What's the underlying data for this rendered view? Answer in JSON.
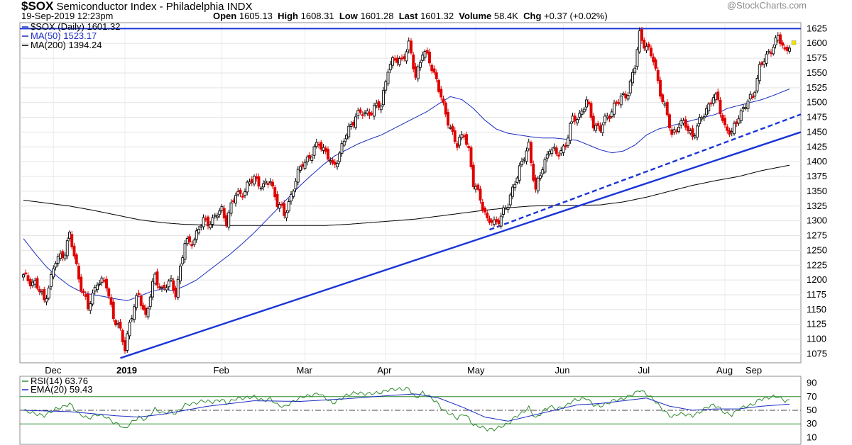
{
  "header": {
    "symbol": "$SOX",
    "name": "Semiconductor Index - Philadelphia INDX",
    "datetime": "19-Sep-2019 12:23pm",
    "open_label": "Open",
    "open": "1605.13",
    "high_label": "High",
    "high": "1608.31",
    "low_label": "Low",
    "low": "1601.28",
    "last_label": "Last",
    "last": "1601.32",
    "volume_label": "Volume",
    "volume": "58.4K",
    "chg_label": "Chg",
    "chg": "+0.37 (+0.02%)",
    "watermark": "@StockCharts.com"
  },
  "colors": {
    "up": "#000000",
    "down": "#e00000",
    "ma50": "#1a2bc0",
    "ma200": "#000000",
    "trend": "#1a35d8",
    "rsi": "#2f8a2f",
    "ema": "#1a2bc0",
    "rsi_band": "#2f8a2f"
  },
  "chart_data": [
    {
      "type": "candlestick",
      "legend": [
        "$SOX (Daily) 1601.32",
        "MA(50) 1523.17",
        "MA(200) 1394.24"
      ],
      "legend_placement": "top-left",
      "ylim": [
        1060,
        1635
      ],
      "yticks": [
        1075,
        1100,
        1125,
        1150,
        1175,
        1200,
        1225,
        1250,
        1275,
        1300,
        1325,
        1350,
        1375,
        1400,
        1425,
        1450,
        1475,
        1500,
        1525,
        1550,
        1575,
        1600,
        1625
      ],
      "xlabels": [
        "Dec",
        "2019",
        "Feb",
        "Mar",
        "Apr",
        "May",
        "Jun",
        "Jul",
        "Aug",
        "Sep"
      ],
      "close_anchors": [
        [
          0,
          1205
        ],
        [
          5,
          1195
        ],
        [
          9,
          1165
        ],
        [
          14,
          1230
        ],
        [
          18,
          1250
        ],
        [
          20,
          1275
        ],
        [
          24,
          1205
        ],
        [
          28,
          1150
        ],
        [
          32,
          1200
        ],
        [
          36,
          1190
        ],
        [
          39,
          1140
        ],
        [
          42,
          1110
        ],
        [
          44,
          1085
        ],
        [
          46,
          1130
        ],
        [
          50,
          1175
        ],
        [
          53,
          1140
        ],
        [
          57,
          1205
        ],
        [
          60,
          1185
        ],
        [
          64,
          1195
        ],
        [
          66,
          1180
        ],
        [
          70,
          1260
        ],
        [
          74,
          1270
        ],
        [
          78,
          1300
        ],
        [
          82,
          1300
        ],
        [
          86,
          1320
        ],
        [
          88,
          1300
        ],
        [
          92,
          1345
        ],
        [
          96,
          1350
        ],
        [
          100,
          1375
        ],
        [
          104,
          1355
        ],
        [
          107,
          1370
        ],
        [
          110,
          1330
        ],
        [
          113,
          1310
        ],
        [
          117,
          1355
        ],
        [
          121,
          1400
        ],
        [
          125,
          1410
        ],
        [
          128,
          1435
        ],
        [
          131,
          1415
        ],
        [
          134,
          1390
        ],
        [
          137,
          1415
        ],
        [
          140,
          1445
        ],
        [
          144,
          1480
        ],
        [
          148,
          1480
        ],
        [
          152,
          1490
        ],
        [
          155,
          1495
        ],
        [
          158,
          1560
        ],
        [
          161,
          1570
        ],
        [
          164,
          1575
        ],
        [
          167,
          1595
        ],
        [
          170,
          1545
        ],
        [
          173,
          1585
        ],
        [
          176,
          1570
        ],
        [
          179,
          1540
        ],
        [
          182,
          1490
        ],
        [
          185,
          1460
        ],
        [
          188,
          1425
        ],
        [
          191,
          1450
        ],
        [
          193,
          1420
        ],
        [
          195,
          1360
        ],
        [
          198,
          1340
        ],
        [
          201,
          1300
        ],
        [
          204,
          1295
        ],
        [
          207,
          1310
        ],
        [
          210,
          1325
        ],
        [
          213,
          1370
        ],
        [
          216,
          1395
        ],
        [
          219,
          1430
        ],
        [
          222,
          1350
        ],
        [
          225,
          1390
        ],
        [
          228,
          1425
        ],
        [
          231,
          1410
        ],
        [
          235,
          1430
        ],
        [
          238,
          1470
        ],
        [
          241,
          1480
        ],
        [
          244,
          1500
        ],
        [
          247,
          1465
        ],
        [
          250,
          1455
        ],
        [
          253,
          1475
        ],
        [
          256,
          1495
        ],
        [
          259,
          1505
        ],
        [
          262,
          1520
        ],
        [
          265,
          1560
        ],
        [
          267,
          1615
        ],
        [
          270,
          1595
        ],
        [
          273,
          1570
        ],
        [
          276,
          1520
        ],
        [
          278,
          1490
        ],
        [
          281,
          1445
        ],
        [
          284,
          1465
        ],
        [
          287,
          1460
        ],
        [
          290,
          1445
        ],
        [
          293,
          1465
        ],
        [
          296,
          1490
        ],
        [
          299,
          1510
        ],
        [
          301,
          1500
        ],
        [
          304,
          1460
        ],
        [
          307,
          1445
        ],
        [
          310,
          1480
        ],
        [
          313,
          1495
        ],
        [
          316,
          1510
        ],
        [
          319,
          1560
        ],
        [
          322,
          1575
        ],
        [
          325,
          1600
        ],
        [
          327,
          1610
        ],
        [
          330,
          1585
        ],
        [
          332,
          1601
        ]
      ],
      "ma50": [
        [
          0,
          1270
        ],
        [
          5,
          1245
        ],
        [
          10,
          1222
        ],
        [
          15,
          1205
        ],
        [
          20,
          1190
        ],
        [
          25,
          1180
        ],
        [
          30,
          1175
        ],
        [
          35,
          1172
        ],
        [
          40,
          1168
        ],
        [
          45,
          1165
        ],
        [
          50,
          1172
        ],
        [
          55,
          1180
        ],
        [
          60,
          1185
        ],
        [
          65,
          1182
        ],
        [
          70,
          1190
        ],
        [
          75,
          1200
        ],
        [
          80,
          1215
        ],
        [
          85,
          1230
        ],
        [
          90,
          1245
        ],
        [
          95,
          1262
        ],
        [
          100,
          1280
        ],
        [
          105,
          1300
        ],
        [
          110,
          1320
        ],
        [
          115,
          1340
        ],
        [
          120,
          1360
        ],
        [
          125,
          1378
        ],
        [
          130,
          1395
        ],
        [
          135,
          1410
        ],
        [
          140,
          1420
        ],
        [
          145,
          1430
        ],
        [
          150,
          1438
        ],
        [
          155,
          1445
        ],
        [
          160,
          1455
        ],
        [
          165,
          1465
        ],
        [
          170,
          1475
        ],
        [
          175,
          1485
        ],
        [
          180,
          1498
        ],
        [
          185,
          1510
        ],
        [
          190,
          1505
        ],
        [
          195,
          1490
        ],
        [
          200,
          1470
        ],
        [
          205,
          1455
        ],
        [
          210,
          1448
        ],
        [
          215,
          1445
        ],
        [
          220,
          1442
        ],
        [
          225,
          1440
        ],
        [
          230,
          1440
        ],
        [
          235,
          1438
        ],
        [
          240,
          1436
        ],
        [
          245,
          1428
        ],
        [
          250,
          1420
        ],
        [
          255,
          1415
        ],
        [
          260,
          1418
        ],
        [
          265,
          1428
        ],
        [
          270,
          1445
        ],
        [
          275,
          1455
        ],
        [
          280,
          1460
        ],
        [
          285,
          1465
        ],
        [
          290,
          1470
        ],
        [
          295,
          1475
        ],
        [
          300,
          1480
        ],
        [
          305,
          1490
        ],
        [
          310,
          1495
        ],
        [
          315,
          1500
        ],
        [
          320,
          1505
        ],
        [
          325,
          1512
        ],
        [
          332,
          1523
        ]
      ],
      "ma200": [
        [
          0,
          1335
        ],
        [
          10,
          1330
        ],
        [
          20,
          1325
        ],
        [
          30,
          1318
        ],
        [
          40,
          1310
        ],
        [
          50,
          1302
        ],
        [
          60,
          1297
        ],
        [
          70,
          1294
        ],
        [
          80,
          1293
        ],
        [
          90,
          1292
        ],
        [
          100,
          1292
        ],
        [
          110,
          1292
        ],
        [
          120,
          1292
        ],
        [
          130,
          1292
        ],
        [
          140,
          1294
        ],
        [
          150,
          1297
        ],
        [
          160,
          1300
        ],
        [
          170,
          1303
        ],
        [
          180,
          1308
        ],
        [
          190,
          1313
        ],
        [
          200,
          1318
        ],
        [
          210,
          1322
        ],
        [
          220,
          1325
        ],
        [
          230,
          1326
        ],
        [
          240,
          1326
        ],
        [
          250,
          1327
        ],
        [
          260,
          1332
        ],
        [
          270,
          1340
        ],
        [
          280,
          1350
        ],
        [
          290,
          1360
        ],
        [
          300,
          1368
        ],
        [
          310,
          1375
        ],
        [
          320,
          1385
        ],
        [
          332,
          1394
        ]
      ],
      "trendlines": [
        {
          "style": "solid",
          "from": [
            42,
            1068
          ],
          "to": [
            340,
            1450
          ]
        },
        {
          "style": "dashed",
          "from": [
            202,
            1285
          ],
          "to": [
            340,
            1480
          ]
        }
      ],
      "horizontal_line": 1625
    },
    {
      "type": "line",
      "legend": [
        "RSI(14) 63.76",
        "EMA(20) 59.43"
      ],
      "legend_placement": "top-left",
      "ylim": [
        0,
        100
      ],
      "yticks": [
        10,
        30,
        50,
        70,
        90
      ],
      "bands": [
        30,
        50,
        70
      ],
      "rsi_anchors": [
        [
          0,
          50
        ],
        [
          5,
          45
        ],
        [
          9,
          42
        ],
        [
          14,
          52
        ],
        [
          18,
          56
        ],
        [
          20,
          60
        ],
        [
          24,
          45
        ],
        [
          28,
          38
        ],
        [
          32,
          44
        ],
        [
          36,
          40
        ],
        [
          39,
          32
        ],
        [
          42,
          28
        ],
        [
          44,
          22
        ],
        [
          46,
          30
        ],
        [
          50,
          40
        ],
        [
          53,
          36
        ],
        [
          57,
          52
        ],
        [
          60,
          46
        ],
        [
          64,
          48
        ],
        [
          66,
          45
        ],
        [
          70,
          58
        ],
        [
          74,
          60
        ],
        [
          78,
          64
        ],
        [
          82,
          62
        ],
        [
          86,
          66
        ],
        [
          88,
          60
        ],
        [
          92,
          67
        ],
        [
          96,
          68
        ],
        [
          100,
          70
        ],
        [
          104,
          64
        ],
        [
          107,
          67
        ],
        [
          110,
          58
        ],
        [
          113,
          55
        ],
        [
          117,
          63
        ],
        [
          121,
          70
        ],
        [
          125,
          72
        ],
        [
          128,
          75
        ],
        [
          131,
          68
        ],
        [
          134,
          60
        ],
        [
          137,
          66
        ],
        [
          140,
          72
        ],
        [
          144,
          76
        ],
        [
          148,
          74
        ],
        [
          152,
          75
        ],
        [
          155,
          76
        ],
        [
          158,
          80
        ],
        [
          161,
          81
        ],
        [
          164,
          81
        ],
        [
          167,
          82
        ],
        [
          170,
          68
        ],
        [
          173,
          76
        ],
        [
          176,
          70
        ],
        [
          179,
          62
        ],
        [
          182,
          50
        ],
        [
          185,
          45
        ],
        [
          188,
          38
        ],
        [
          191,
          45
        ],
        [
          193,
          38
        ],
        [
          195,
          28
        ],
        [
          198,
          26
        ],
        [
          201,
          22
        ],
        [
          204,
          22
        ],
        [
          207,
          26
        ],
        [
          210,
          30
        ],
        [
          213,
          40
        ],
        [
          216,
          46
        ],
        [
          219,
          54
        ],
        [
          222,
          38
        ],
        [
          225,
          48
        ],
        [
          228,
          56
        ],
        [
          231,
          52
        ],
        [
          235,
          56
        ],
        [
          238,
          64
        ],
        [
          241,
          66
        ],
        [
          244,
          68
        ],
        [
          247,
          58
        ],
        [
          250,
          56
        ],
        [
          253,
          60
        ],
        [
          256,
          65
        ],
        [
          259,
          66
        ],
        [
          262,
          70
        ],
        [
          265,
          75
        ],
        [
          267,
          80
        ],
        [
          270,
          74
        ],
        [
          273,
          66
        ],
        [
          276,
          55
        ],
        [
          278,
          48
        ],
        [
          281,
          40
        ],
        [
          284,
          45
        ],
        [
          287,
          44
        ],
        [
          290,
          42
        ],
        [
          293,
          47
        ],
        [
          296,
          54
        ],
        [
          299,
          58
        ],
        [
          301,
          55
        ],
        [
          304,
          46
        ],
        [
          307,
          43
        ],
        [
          310,
          52
        ],
        [
          313,
          56
        ],
        [
          316,
          58
        ],
        [
          319,
          66
        ],
        [
          322,
          68
        ],
        [
          325,
          70
        ],
        [
          327,
          70
        ],
        [
          330,
          64
        ],
        [
          332,
          64
        ]
      ],
      "ema_anchors": [
        [
          0,
          50
        ],
        [
          20,
          48
        ],
        [
          40,
          42
        ],
        [
          50,
          40
        ],
        [
          60,
          44
        ],
        [
          80,
          56
        ],
        [
          100,
          64
        ],
        [
          120,
          63
        ],
        [
          140,
          67
        ],
        [
          160,
          72
        ],
        [
          170,
          74
        ],
        [
          180,
          68
        ],
        [
          190,
          55
        ],
        [
          200,
          40
        ],
        [
          210,
          34
        ],
        [
          220,
          42
        ],
        [
          230,
          50
        ],
        [
          240,
          58
        ],
        [
          250,
          60
        ],
        [
          260,
          64
        ],
        [
          270,
          68
        ],
        [
          280,
          56
        ],
        [
          290,
          50
        ],
        [
          300,
          52
        ],
        [
          310,
          52
        ],
        [
          320,
          56
        ],
        [
          332,
          59
        ]
      ]
    }
  ]
}
